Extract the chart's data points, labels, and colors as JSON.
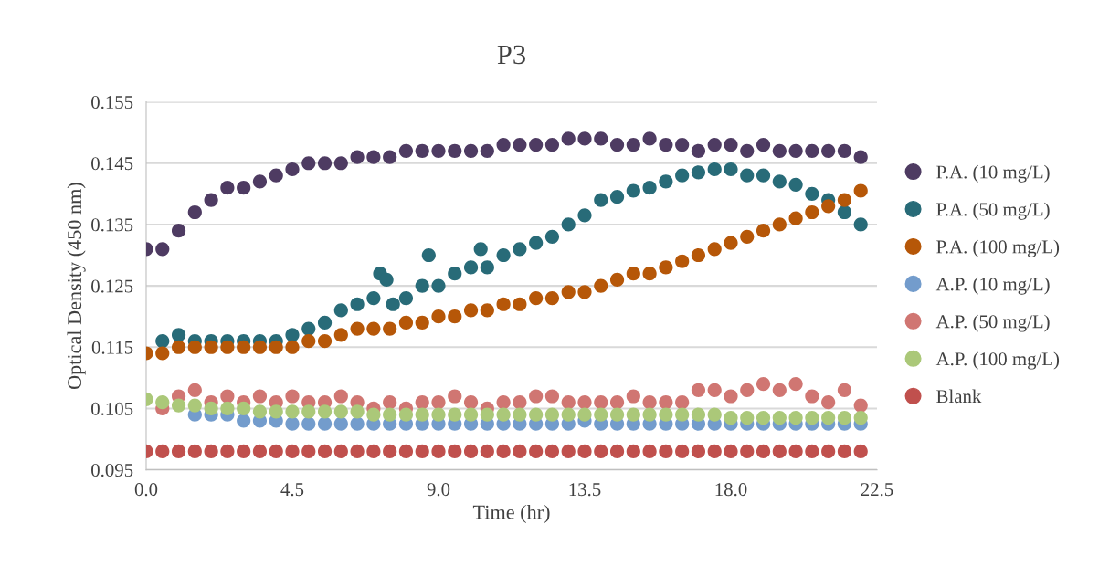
{
  "chart_data": {
    "type": "scatter",
    "title": "P3",
    "xlabel": "Time (hr)",
    "ylabel": "Optical Density (450 nm)",
    "xlim": [
      0,
      22.5
    ],
    "xticks": [
      {
        "value": 0,
        "label": "0.0"
      },
      4.5,
      {
        "value": 9,
        "label": "9.0"
      },
      13.5,
      {
        "value": 18,
        "label": "18.0"
      },
      22.5
    ],
    "ylim": [
      0.095,
      0.155
    ],
    "yticks": [
      0.095,
      0.105,
      0.115,
      0.125,
      0.135,
      0.145,
      0.155
    ],
    "grid": "y",
    "legend": "right",
    "marker": "circle",
    "x": [
      0,
      0.5,
      1,
      1.5,
      2,
      2.5,
      3,
      3.5,
      4,
      4.5,
      5,
      5.5,
      6,
      6.5,
      7,
      7.5,
      8,
      8.5,
      9,
      9.5,
      10,
      10.5,
      11,
      11.5,
      12,
      12.5,
      13,
      13.5,
      14,
      14.5,
      15,
      15.5,
      16,
      16.5,
      17,
      17.5,
      18,
      18.5,
      19,
      19.5,
      20,
      20.5,
      21,
      21.5,
      22
    ],
    "series": [
      {
        "name": "P.A. (10 mg/L)",
        "color": "#4e3b62",
        "values": [
          0.131,
          0.131,
          0.134,
          0.137,
          0.139,
          0.141,
          0.141,
          0.142,
          0.143,
          0.144,
          0.145,
          0.145,
          0.145,
          0.146,
          0.146,
          0.146,
          0.147,
          0.147,
          0.147,
          0.147,
          0.147,
          0.147,
          0.148,
          0.148,
          0.148,
          0.148,
          0.149,
          0.149,
          0.149,
          0.148,
          0.148,
          0.149,
          0.148,
          0.148,
          0.147,
          0.148,
          0.148,
          0.147,
          0.148,
          0.147,
          0.147,
          0.147,
          0.147,
          0.147,
          0.146
        ]
      },
      {
        "name": "P.A. (50 mg/L)",
        "color": "#286b78",
        "x": [
          0.5,
          1,
          1.5,
          2,
          2.5,
          3,
          3.5,
          4,
          4.5,
          5,
          5.5,
          6,
          6.5,
          7,
          7.2,
          7.4,
          7.6,
          8,
          8.5,
          8.7,
          9,
          9.5,
          10,
          10.3,
          10.5,
          11,
          11.5,
          12,
          12.5,
          13,
          13.5,
          14,
          14.5,
          15,
          15.5,
          16,
          16.5,
          17,
          17.5,
          18,
          18.5,
          19,
          19.5,
          20,
          20.5,
          21,
          21.5,
          22
        ],
        "values": [
          0.116,
          0.117,
          0.116,
          0.116,
          0.116,
          0.116,
          0.116,
          0.116,
          0.117,
          0.118,
          0.119,
          0.121,
          0.122,
          0.123,
          0.127,
          0.126,
          0.122,
          0.123,
          0.125,
          0.13,
          0.125,
          0.127,
          0.128,
          0.131,
          0.128,
          0.13,
          0.131,
          0.132,
          0.133,
          0.135,
          0.1365,
          0.139,
          0.1395,
          0.1405,
          0.141,
          0.142,
          0.143,
          0.1435,
          0.144,
          0.144,
          0.143,
          0.143,
          0.142,
          0.1415,
          0.14,
          0.139,
          0.137,
          0.135
        ]
      },
      {
        "name": "P.A. (100 mg/L)",
        "color": "#b65708",
        "values": [
          0.114,
          0.114,
          0.115,
          0.115,
          0.115,
          0.115,
          0.115,
          0.115,
          0.115,
          0.115,
          0.116,
          0.116,
          0.117,
          0.118,
          0.118,
          0.118,
          0.119,
          0.119,
          0.12,
          0.12,
          0.121,
          0.121,
          0.122,
          0.122,
          0.123,
          0.123,
          0.124,
          0.124,
          0.125,
          0.126,
          0.127,
          0.127,
          0.128,
          0.129,
          0.13,
          0.131,
          0.132,
          0.133,
          0.134,
          0.135,
          0.136,
          0.137,
          0.138,
          0.139,
          0.1405
        ]
      },
      {
        "name": "A.P. (10 mg/L)",
        "color": "#739ccc",
        "values": [
          null,
          null,
          null,
          0.104,
          0.104,
          0.104,
          0.103,
          0.103,
          0.103,
          0.1025,
          0.1025,
          0.1025,
          0.1025,
          0.1025,
          0.1025,
          0.1025,
          0.1025,
          0.1025,
          0.1025,
          0.1025,
          0.1025,
          0.1025,
          0.1025,
          0.1025,
          0.1025,
          0.1025,
          0.1025,
          0.103,
          0.1025,
          0.1025,
          0.1025,
          0.1025,
          0.1025,
          0.1025,
          0.1025,
          0.1025,
          0.1025,
          0.1025,
          0.1025,
          0.1025,
          0.1025,
          0.1025,
          0.1025,
          0.1025,
          0.1025
        ]
      },
      {
        "name": "A.P. (50 mg/L)",
        "color": "#d07672",
        "values": [
          null,
          0.105,
          0.107,
          0.108,
          0.106,
          0.107,
          0.106,
          0.107,
          0.106,
          0.107,
          0.106,
          0.106,
          0.107,
          0.106,
          0.105,
          0.106,
          0.105,
          0.106,
          0.106,
          0.107,
          0.106,
          0.105,
          0.106,
          0.106,
          0.107,
          0.107,
          0.106,
          0.106,
          0.106,
          0.106,
          0.107,
          0.106,
          0.106,
          0.106,
          0.108,
          0.108,
          0.107,
          0.108,
          0.109,
          0.108,
          0.109,
          0.107,
          0.106,
          0.108,
          0.1055
        ]
      },
      {
        "name": "A.P. (100 mg/L)",
        "color": "#abc879",
        "values": [
          0.1065,
          0.106,
          0.1055,
          0.1055,
          0.105,
          0.105,
          0.105,
          0.1045,
          0.1045,
          0.1045,
          0.1045,
          0.1045,
          0.1045,
          0.1045,
          0.104,
          0.104,
          0.104,
          0.104,
          0.104,
          0.104,
          0.104,
          0.104,
          0.104,
          0.104,
          0.104,
          0.104,
          0.104,
          0.104,
          0.104,
          0.104,
          0.104,
          0.104,
          0.104,
          0.104,
          0.104,
          0.104,
          0.1035,
          0.1035,
          0.1035,
          0.1035,
          0.1035,
          0.1035,
          0.1035,
          0.1035,
          0.1035
        ]
      },
      {
        "name": "Blank",
        "color": "#c0504d",
        "values": [
          0.098,
          0.098,
          0.098,
          0.098,
          0.098,
          0.098,
          0.098,
          0.098,
          0.098,
          0.098,
          0.098,
          0.098,
          0.098,
          0.098,
          0.098,
          0.098,
          0.098,
          0.098,
          0.098,
          0.098,
          0.098,
          0.098,
          0.098,
          0.098,
          0.098,
          0.098,
          0.098,
          0.098,
          0.098,
          0.098,
          0.098,
          0.098,
          0.098,
          0.098,
          0.098,
          0.098,
          0.098,
          0.098,
          0.098,
          0.098,
          0.098,
          0.098,
          0.098,
          0.098,
          0.098
        ]
      }
    ]
  }
}
